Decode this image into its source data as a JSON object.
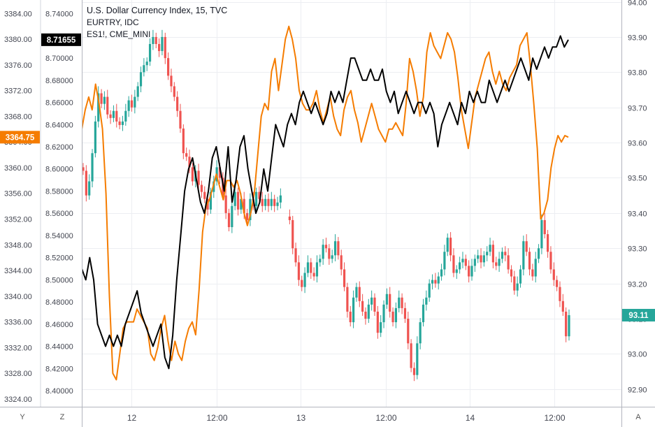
{
  "legend": {
    "title": "U.S. Dollar Currency Index, 15, TVC",
    "line2": "EURTRY, IDC",
    "line3": "ES1!, CME_MINI"
  },
  "axis_buttons": {
    "left": "Y",
    "middle": "Z",
    "right": "A"
  },
  "colors": {
    "up": "#26a69a",
    "down": "#ef5350",
    "es": "#f57c00",
    "eurtry": "#000000",
    "grid": "#eceef2"
  },
  "chart_data": {
    "type": "candlestick+line",
    "title": "U.S. Dollar Currency Index, 15, TVC",
    "x_ticks": [
      "12",
      "12:00",
      "13",
      "12:00",
      "14",
      "12:00"
    ],
    "axes": {
      "es": {
        "ticks": [
          "3384.00",
          "3380.00",
          "3376.00",
          "3372.00",
          "3368.00",
          "3364.00",
          "3360.00",
          "3356.00",
          "3352.00",
          "3348.00",
          "3344.00",
          "3340.00",
          "3336.00",
          "3332.00",
          "3328.00",
          "3324.00"
        ],
        "range": [
          3322.8,
          3386.1
        ]
      },
      "eurtry": {
        "ticks": [
          "8.74000",
          "8.72000",
          "8.70000",
          "8.68000",
          "8.66000",
          "8.64000",
          "8.62000",
          "8.60000",
          "8.58000",
          "8.56000",
          "8.54000",
          "8.52000",
          "8.50000",
          "8.48000",
          "8.46000",
          "8.44000",
          "8.42000",
          "8.40000"
        ],
        "range": [
          8.3855,
          8.7524
        ]
      },
      "dxy": {
        "ticks": [
          "94.00",
          "93.90",
          "93.80",
          "93.70",
          "93.60",
          "93.50",
          "93.40",
          "93.30",
          "93.20",
          "93.10",
          "93.00",
          "92.90"
        ],
        "range": [
          92.85,
          94.005
        ]
      }
    },
    "price_labels": {
      "eurtry_last": "8.71655",
      "es_last": "3364.75",
      "dxy_last": "93.11"
    },
    "series": [
      {
        "name": "U.S. Dollar Currency Index",
        "style": "candles",
        "close": [
          93.52,
          93.45,
          93.49,
          93.57,
          93.66,
          93.74,
          93.71,
          93.73,
          93.68,
          93.67,
          93.69,
          93.66,
          93.65,
          93.66,
          93.69,
          93.72,
          93.7,
          93.73,
          93.76,
          93.8,
          93.82,
          93.83,
          93.88,
          93.9,
          93.88,
          93.86,
          93.9,
          93.84,
          93.79,
          93.76,
          93.73,
          93.69,
          93.64,
          93.57,
          93.56,
          93.53,
          93.49,
          93.52,
          93.48,
          93.46,
          93.44,
          93.41,
          93.46,
          93.49,
          93.53,
          93.5,
          93.45,
          93.4,
          93.36,
          93.42,
          93.46,
          93.41,
          93.44,
          93.4,
          93.38,
          93.44,
          93.42,
          93.46,
          93.44,
          93.42,
          93.44,
          93.42,
          93.44,
          93.42,
          93.43,
          93.45,
          null,
          null,
          93.38,
          93.3,
          93.26,
          93.21,
          93.19,
          93.23,
          93.26,
          93.23,
          93.22,
          93.26,
          93.27,
          93.31,
          93.3,
          93.27,
          93.28,
          93.32,
          93.28,
          93.24,
          93.19,
          93.12,
          93.09,
          93.16,
          93.19,
          93.15,
          93.12,
          93.1,
          93.14,
          93.16,
          93.12,
          93.06,
          93.09,
          93.14,
          93.17,
          93.12,
          93.09,
          93.13,
          93.16,
          93.13,
          93.1,
          93.03,
          92.96,
          92.94,
          93.03,
          93.09,
          93.14,
          93.16,
          93.2,
          93.21,
          93.2,
          93.22,
          93.24,
          93.29,
          93.33,
          93.28,
          93.23,
          93.24,
          93.26,
          93.27,
          93.25,
          93.22,
          93.25,
          93.27,
          93.28,
          93.26,
          93.28,
          93.29,
          93.31,
          93.26,
          93.25,
          93.27,
          93.29,
          93.28,
          93.24,
          93.22,
          93.18,
          93.2,
          93.24,
          93.32,
          93.29,
          93.24,
          93.22,
          93.27,
          93.3,
          93.38,
          93.34,
          93.29,
          93.24,
          93.21,
          93.19,
          93.15,
          93.12,
          93.05,
          93.11
        ],
        "up_color": "#26a69a",
        "down_color": "#ef5350"
      },
      {
        "name": "ES1!, CME_MINI",
        "style": "line",
        "color": "#f57c00",
        "values": [
          3366,
          3369,
          3371,
          3369,
          3373,
          3370,
          3366,
          3356,
          3340,
          3328,
          3327,
          3331,
          3335,
          3336,
          3336,
          3336,
          3338,
          3337,
          3336,
          3335,
          3331,
          3330,
          3332,
          3335,
          3337,
          3333,
          3330,
          3333,
          3331,
          3330,
          3333,
          3335,
          3336,
          3334,
          3341,
          3350,
          3354,
          3355,
          3357,
          3359,
          3357,
          3355,
          3358,
          3358,
          3357,
          3358,
          3356,
          3353,
          3351,
          3353,
          3356,
          3362,
          3368,
          3370,
          3369,
          3375,
          3377,
          3372,
          3376,
          3380,
          3382,
          3380,
          3377,
          3372,
          3370,
          3369,
          3369,
          3370,
          3372,
          3369,
          3367,
          3369,
          3371,
          3368,
          3366,
          3365,
          3369,
          3371,
          3372,
          3369,
          3367,
          3364,
          3366,
          3368,
          3370,
          3368,
          3366,
          3365,
          3364,
          3366,
          3366,
          3367,
          3366,
          3365,
          3370,
          3377,
          3375,
          3372,
          3368,
          3371,
          3378,
          3381,
          3379,
          3378,
          3377,
          3379,
          3381,
          3380,
          3378,
          3374,
          3369,
          3366,
          3363,
          3367,
          3371,
          3373,
          3375,
          3377,
          3378,
          3375,
          3373,
          3375,
          3373,
          3372,
          3374,
          3375,
          3376,
          3379,
          3380,
          3381,
          3376,
          3370,
          3363,
          3352,
          3353,
          3355,
          3360,
          3363,
          3365,
          3364,
          3365,
          3364.75
        ]
      },
      {
        "name": "EURTRY, IDC",
        "style": "line",
        "color": "#000000",
        "values": [
          8.51,
          8.5,
          8.52,
          8.5,
          8.46,
          8.45,
          8.44,
          8.45,
          8.44,
          8.45,
          8.44,
          8.46,
          8.47,
          8.48,
          8.49,
          8.47,
          8.46,
          8.45,
          8.44,
          8.45,
          8.46,
          8.43,
          8.42,
          8.45,
          8.5,
          8.54,
          8.58,
          8.6,
          8.61,
          8.59,
          8.57,
          8.56,
          8.58,
          8.61,
          8.62,
          8.6,
          8.58,
          8.62,
          8.57,
          8.59,
          8.62,
          8.63,
          8.6,
          8.58,
          8.56,
          8.57,
          8.6,
          8.58,
          8.61,
          8.64,
          8.63,
          8.62,
          8.64,
          8.65,
          8.64,
          8.66,
          8.67,
          8.66,
          8.65,
          8.66,
          8.65,
          8.64,
          8.65,
          8.67,
          8.66,
          8.67,
          8.66,
          8.68,
          8.7,
          8.7,
          8.69,
          8.68,
          8.68,
          8.69,
          8.68,
          8.68,
          8.69,
          8.67,
          8.66,
          8.67,
          8.65,
          8.66,
          8.67,
          8.66,
          8.65,
          8.66,
          8.66,
          8.65,
          8.66,
          8.65,
          8.62,
          8.64,
          8.65,
          8.66,
          8.65,
          8.64,
          8.66,
          8.65,
          8.67,
          8.66,
          8.67,
          8.66,
          8.66,
          8.68,
          8.67,
          8.66,
          8.67,
          8.68,
          8.67,
          8.68,
          8.69,
          8.7,
          8.69,
          8.68,
          8.7,
          8.69,
          8.7,
          8.71,
          8.7,
          8.71,
          8.71,
          8.72,
          8.71,
          8.71655
        ]
      }
    ]
  }
}
